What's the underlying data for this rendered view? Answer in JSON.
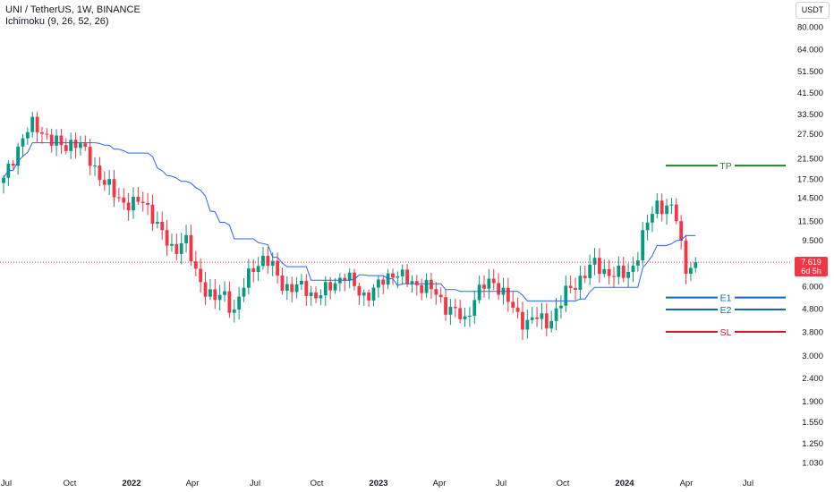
{
  "legend": {
    "symbol_line": "UNI / TetherUS, 1W, BINANCE",
    "indicator_line": "Ichimoku (9, 26, 52, 26)"
  },
  "currency_label": "USDT",
  "last_price": {
    "value": "7.619",
    "countdown": "6d 5h"
  },
  "colors": {
    "up": "#089981",
    "down": "#f23645",
    "kijun": "#2962ff",
    "tp": "#2e7d32",
    "entry": "#1565c0",
    "sl": "#b71c1c",
    "grid_text": "#131722"
  },
  "chart_data": {
    "type": "candlestick",
    "title": "UNI / TetherUS, 1W, BINANCE",
    "yscale": "log",
    "ylim": [
      0.95,
      95
    ],
    "y_ticks": [
      "80.000",
      "64.000",
      "51.500",
      "41.500",
      "33.500",
      "27.500",
      "21.500",
      "17.500",
      "14.500",
      "11.500",
      "9.500",
      "6.000",
      "4.800",
      "3.800",
      "3.000",
      "2.400",
      "1.900",
      "1.550",
      "1.250",
      "1.030"
    ],
    "x_ticks": [
      "Jul",
      "Oct",
      "2022",
      "Apr",
      "Jul",
      "Oct",
      "2023",
      "Apr",
      "Jul",
      "Oct",
      "2024",
      "Apr",
      "Jul"
    ],
    "x_ticks_bold": [
      false,
      false,
      true,
      false,
      false,
      false,
      true,
      false,
      false,
      false,
      true,
      false,
      false
    ],
    "close_path": [
      17,
      22,
      27,
      30,
      28,
      25,
      24,
      26,
      23,
      20,
      17,
      15,
      14,
      13.5,
      14,
      12,
      9.5,
      8.5,
      10,
      7,
      6,
      5.2,
      5.5,
      4.7,
      6,
      7.5,
      7.9,
      7,
      6,
      5.8,
      6,
      5.4,
      5.6,
      6.3,
      6.7,
      5.9,
      5.5,
      5.7,
      6.5,
      7,
      6.3,
      6.2,
      6.0,
      5.6,
      5.0,
      4.6,
      4.2,
      5.5,
      6.0,
      6.3,
      5.5,
      4.5,
      4.2,
      4.4,
      4.1,
      4.6,
      5.5,
      6.2,
      6.8,
      7.5,
      7.0,
      6.6,
      6.8,
      7.6,
      10.5,
      14,
      13,
      12.5,
      7.2,
      7.62
    ],
    "close_path_note": "",
    "indicator": {
      "name": "Ichimoku (9, 26, 52, 26)",
      "line": "kijun"
    },
    "levels": [
      {
        "label": "TP",
        "value": 20.0
      },
      {
        "label": "E1",
        "value": 5.35
      },
      {
        "label": "E2",
        "value": 4.75
      },
      {
        "label": "SL",
        "value": 3.8
      }
    ],
    "last_price": 7.619
  }
}
